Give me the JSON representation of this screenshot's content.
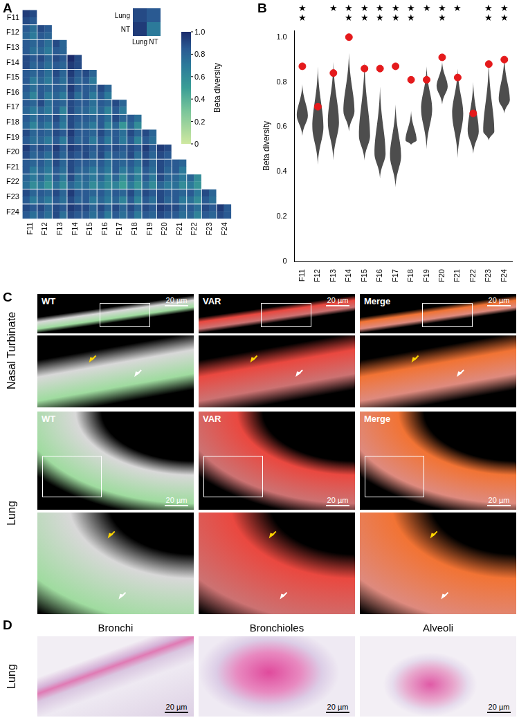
{
  "panel_labels": [
    "A",
    "B",
    "C",
    "D"
  ],
  "heatmap": {
    "labels": [
      "F11",
      "F12",
      "F13",
      "F14",
      "F15",
      "F16",
      "F17",
      "F18",
      "F19",
      "F20",
      "F21",
      "F22",
      "F23",
      "F24"
    ],
    "cells": [
      [
        [
          0.95,
          0.9,
          0.9,
          0.85
        ]
      ],
      [
        [
          0.85,
          0.75,
          0.8,
          0.7
        ],
        [
          0.9,
          0.85,
          0.85,
          0.8
        ]
      ],
      [
        [
          0.85,
          0.8,
          0.85,
          0.75
        ],
        [
          0.85,
          0.75,
          0.8,
          0.7
        ],
        [
          0.9,
          0.8,
          0.85,
          0.8
        ]
      ],
      [
        [
          0.9,
          0.85,
          0.9,
          0.8
        ],
        [
          0.9,
          0.8,
          0.85,
          0.75
        ],
        [
          0.9,
          0.85,
          0.85,
          0.8
        ],
        [
          1.0,
          0.9,
          0.95,
          0.9
        ]
      ],
      [
        [
          0.85,
          0.8,
          0.85,
          0.7
        ],
        [
          0.85,
          0.75,
          0.8,
          0.7
        ],
        [
          0.9,
          0.8,
          0.85,
          0.75
        ],
        [
          0.95,
          0.85,
          0.9,
          0.8
        ],
        [
          0.9,
          0.8,
          0.85,
          0.7
        ]
      ],
      [
        [
          0.85,
          0.75,
          0.8,
          0.65
        ],
        [
          0.85,
          0.8,
          0.85,
          0.7
        ],
        [
          0.85,
          0.8,
          0.8,
          0.7
        ],
        [
          0.95,
          0.85,
          0.9,
          0.75
        ],
        [
          0.85,
          0.8,
          0.85,
          0.7
        ],
        [
          0.9,
          0.8,
          0.85,
          0.7
        ]
      ],
      [
        [
          0.85,
          0.8,
          0.8,
          0.7
        ],
        [
          0.9,
          0.75,
          0.8,
          0.7
        ],
        [
          0.85,
          0.8,
          0.85,
          0.65
        ],
        [
          0.9,
          0.85,
          0.9,
          0.8
        ],
        [
          0.85,
          0.75,
          0.8,
          0.7
        ],
        [
          0.85,
          0.8,
          0.8,
          0.65
        ],
        [
          0.9,
          0.8,
          0.85,
          0.7
        ]
      ],
      [
        [
          0.85,
          0.75,
          0.8,
          0.65
        ],
        [
          0.85,
          0.8,
          0.8,
          0.7
        ],
        [
          0.9,
          0.75,
          0.85,
          0.7
        ],
        [
          0.9,
          0.85,
          0.9,
          0.8
        ],
        [
          0.85,
          0.8,
          0.8,
          0.7
        ],
        [
          0.85,
          0.75,
          0.85,
          0.65
        ],
        [
          0.9,
          0.8,
          0.8,
          0.55
        ],
        [
          0.85,
          0.75,
          0.8,
          0.6
        ]
      ],
      [
        [
          0.9,
          0.8,
          0.85,
          0.75
        ],
        [
          0.85,
          0.8,
          0.8,
          0.7
        ],
        [
          0.9,
          0.85,
          0.85,
          0.7
        ],
        [
          0.95,
          0.85,
          0.9,
          0.8
        ],
        [
          0.85,
          0.8,
          0.85,
          0.7
        ],
        [
          0.9,
          0.8,
          0.85,
          0.7
        ],
        [
          0.85,
          0.75,
          0.85,
          0.7
        ],
        [
          0.9,
          0.8,
          0.85,
          0.65
        ],
        [
          0.9,
          0.8,
          0.85,
          0.75
        ]
      ],
      [
        [
          0.95,
          0.85,
          0.9,
          0.8
        ],
        [
          0.9,
          0.85,
          0.85,
          0.75
        ],
        [
          0.95,
          0.85,
          0.9,
          0.8
        ],
        [
          0.95,
          0.9,
          0.9,
          0.85
        ],
        [
          0.9,
          0.85,
          0.9,
          0.8
        ],
        [
          0.9,
          0.85,
          0.9,
          0.75
        ],
        [
          0.9,
          0.85,
          0.85,
          0.8
        ],
        [
          0.9,
          0.85,
          0.9,
          0.75
        ],
        [
          0.95,
          0.85,
          0.9,
          0.8
        ],
        [
          0.95,
          0.9,
          0.9,
          0.85
        ]
      ],
      [
        [
          0.85,
          0.8,
          0.85,
          0.7
        ],
        [
          0.85,
          0.75,
          0.8,
          0.7
        ],
        [
          0.9,
          0.8,
          0.85,
          0.75
        ],
        [
          0.9,
          0.85,
          0.9,
          0.8
        ],
        [
          0.85,
          0.8,
          0.8,
          0.7
        ],
        [
          0.85,
          0.75,
          0.8,
          0.7
        ],
        [
          0.85,
          0.8,
          0.85,
          0.7
        ],
        [
          0.85,
          0.75,
          0.8,
          0.65
        ],
        [
          0.9,
          0.8,
          0.85,
          0.75
        ],
        [
          0.9,
          0.85,
          0.9,
          0.8
        ],
        [
          0.85,
          0.8,
          0.85,
          0.7
        ]
      ],
      [
        [
          0.8,
          0.7,
          0.75,
          0.6
        ],
        [
          0.8,
          0.65,
          0.7,
          0.55
        ],
        [
          0.85,
          0.7,
          0.75,
          0.6
        ],
        [
          0.9,
          0.75,
          0.8,
          0.7
        ],
        [
          0.8,
          0.7,
          0.75,
          0.6
        ],
        [
          0.8,
          0.65,
          0.7,
          0.6
        ],
        [
          0.8,
          0.6,
          0.65,
          0.5
        ],
        [
          0.8,
          0.65,
          0.7,
          0.55
        ],
        [
          0.85,
          0.7,
          0.75,
          0.6
        ],
        [
          0.9,
          0.8,
          0.8,
          0.7
        ],
        [
          0.8,
          0.7,
          0.75,
          0.6
        ],
        [
          0.8,
          0.6,
          0.7,
          0.55
        ]
      ],
      [
        [
          0.9,
          0.8,
          0.85,
          0.7
        ],
        [
          0.85,
          0.8,
          0.8,
          0.7
        ],
        [
          0.9,
          0.8,
          0.85,
          0.75
        ],
        [
          0.95,
          0.85,
          0.9,
          0.8
        ],
        [
          0.85,
          0.8,
          0.85,
          0.7
        ],
        [
          0.85,
          0.75,
          0.8,
          0.7
        ],
        [
          0.85,
          0.8,
          0.8,
          0.65
        ],
        [
          0.9,
          0.75,
          0.85,
          0.65
        ],
        [
          0.9,
          0.85,
          0.85,
          0.75
        ],
        [
          0.9,
          0.85,
          0.9,
          0.8
        ],
        [
          0.85,
          0.8,
          0.85,
          0.7
        ],
        [
          0.85,
          0.7,
          0.75,
          0.6
        ],
        [
          0.9,
          0.8,
          0.85,
          0.75
        ]
      ],
      [
        [
          0.9,
          0.85,
          0.85,
          0.75
        ],
        [
          0.9,
          0.8,
          0.85,
          0.75
        ],
        [
          0.9,
          0.85,
          0.9,
          0.75
        ],
        [
          0.95,
          0.9,
          0.9,
          0.85
        ],
        [
          0.9,
          0.8,
          0.85,
          0.75
        ],
        [
          0.9,
          0.8,
          0.85,
          0.7
        ],
        [
          0.9,
          0.8,
          0.85,
          0.75
        ],
        [
          0.9,
          0.8,
          0.85,
          0.7
        ],
        [
          0.9,
          0.85,
          0.85,
          0.8
        ],
        [
          0.95,
          0.9,
          0.9,
          0.85
        ],
        [
          0.9,
          0.8,
          0.85,
          0.75
        ],
        [
          0.85,
          0.75,
          0.8,
          0.65
        ],
        [
          0.9,
          0.85,
          0.85,
          0.8
        ],
        [
          0.95,
          0.85,
          0.9,
          0.85
        ]
      ]
    ],
    "inset": {
      "labels": [
        "Lung",
        "NT"
      ],
      "values": [
        0.9,
        0.85,
        0.95,
        0.7
      ]
    },
    "colorbar": {
      "label": "Beta diversity",
      "range": [
        0,
        1
      ],
      "ticks": [
        0,
        0.2,
        0.4,
        0.6,
        0.8,
        {
          "value": 1,
          "label": "1.0"
        }
      ]
    }
  },
  "chart_data": {
    "type": "violin",
    "categories": [
      "F11",
      "F12",
      "F13",
      "F14",
      "F15",
      "F16",
      "F17",
      "F18",
      "F19",
      "F20",
      "F21",
      "F22",
      "F23",
      "F24"
    ],
    "y_label": "Beta diversity",
    "ylim": [
      0,
      1.03
    ],
    "yticks": [
      0,
      0.2,
      0.4,
      0.6,
      0.8,
      {
        "value": 1,
        "label": "1.0"
      }
    ],
    "grid": false,
    "color": "#e41a1c",
    "values": [
      0.87,
      0.69,
      0.84,
      1.0,
      0.86,
      0.86,
      0.87,
      0.81,
      0.81,
      0.91,
      0.82,
      0.66,
      0.88,
      0.9
    ],
    "violins": [
      {
        "min": 0.56,
        "max": 0.79,
        "mode": 0.65
      },
      {
        "min": 0.43,
        "max": 0.87,
        "mode": 0.6
      },
      {
        "min": 0.45,
        "max": 0.89,
        "mode": 0.62
      },
      {
        "min": 0.58,
        "max": 0.93,
        "mode": 0.67
      },
      {
        "min": 0.45,
        "max": 0.89,
        "mode": 0.56
      },
      {
        "min": 0.37,
        "max": 0.78,
        "mode": 0.48
      },
      {
        "min": 0.33,
        "max": 0.7,
        "mode": 0.47
      },
      {
        "min": 0.52,
        "max": 0.67,
        "mode": 0.54
      },
      {
        "min": 0.5,
        "max": 0.87,
        "mode": 0.68
      },
      {
        "min": 0.7,
        "max": 0.89,
        "mode": 0.78
      },
      {
        "min": 0.46,
        "max": 0.86,
        "mode": 0.66
      },
      {
        "min": 0.48,
        "max": 0.8,
        "mode": 0.58
      },
      {
        "min": 0.54,
        "max": 0.89,
        "mode": 0.58
      },
      {
        "min": 0.66,
        "max": 0.91,
        "mode": 0.72
      }
    ],
    "significance": [
      "★★",
      null,
      "★",
      "★★",
      "★★",
      "★★",
      "★★",
      "★★",
      "★",
      "★★",
      "★",
      null,
      "★★",
      "★★"
    ]
  },
  "micrographs": {
    "columns": [
      "WT",
      "VAR",
      "Merge"
    ],
    "rows": [
      "Nasal Turbinate",
      "Lung"
    ],
    "scale_bar": "20 µm"
  },
  "histology": {
    "row": "Lung",
    "columns": [
      "Bronchi",
      "Bronchioles",
      "Alveoli"
    ],
    "scale_bar": "20 µm"
  }
}
